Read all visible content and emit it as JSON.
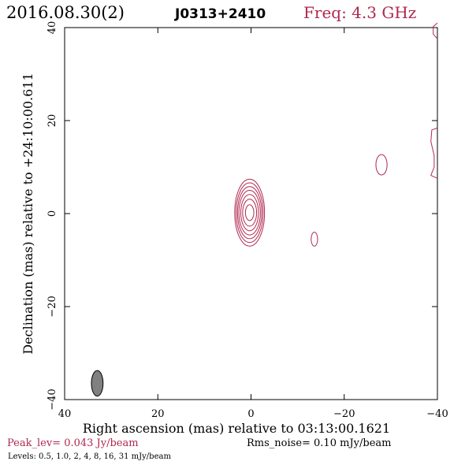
{
  "header": {
    "date": "2016.08.30(2)",
    "source": "J0313+2410",
    "freq": "Freq: 4.3 GHz"
  },
  "footer": {
    "peak": "Peak_lev=  0.043 Jy/beam",
    "rms": "Rms_noise= 0.10 mJy/beam",
    "levels": "Levels: 0.5, 1.0,   2,   4,   8,  16,  31 mJy/beam"
  },
  "colors": {
    "contour": "#b0284f",
    "axes": "#000000",
    "beam_fill": "#808080"
  },
  "chart_data": {
    "type": "contour",
    "xlabel": "Right ascension (mas) relative to 03:13:00.1621",
    "ylabel": "Declination (mas) relative to +24:10:00.611",
    "xlim": [
      40,
      -40
    ],
    "ylim": [
      -40,
      40
    ],
    "xticks": [
      40,
      20,
      0,
      -20,
      -40
    ],
    "yticks": [
      -40,
      -20,
      0,
      20,
      40
    ],
    "xtick_labels": [
      "40",
      "20",
      "0",
      "−20",
      "−40"
    ],
    "ytick_labels": [
      "−40",
      "−20",
      "0",
      "20",
      "40"
    ],
    "contours": [
      {
        "x": 0.3,
        "y": 0.2,
        "rx": 3.2,
        "ry": 7.2
      },
      {
        "x": 0.3,
        "y": 0.2,
        "rx": 2.9,
        "ry": 6.4
      },
      {
        "x": 0.3,
        "y": 0.2,
        "rx": 2.6,
        "ry": 5.6
      },
      {
        "x": 0.3,
        "y": 0.2,
        "rx": 2.3,
        "ry": 4.8
      },
      {
        "x": 0.3,
        "y": 0.2,
        "rx": 1.9,
        "ry": 3.9
      },
      {
        "x": 0.3,
        "y": 0.2,
        "rx": 1.5,
        "ry": 2.9
      },
      {
        "x": 0.3,
        "y": 0.2,
        "rx": 0.9,
        "ry": 1.7
      },
      {
        "x": -13.6,
        "y": -5.5,
        "rx": 0.7,
        "ry": 1.5
      },
      {
        "x": -28.0,
        "y": 10.5,
        "rx": 1.2,
        "ry": 2.2
      }
    ],
    "edge_features": [
      {
        "x_from": -40,
        "points": [
          [
            -40.0,
            18.4
          ],
          [
            -38.8,
            18.0
          ],
          [
            -38.6,
            15.5
          ],
          [
            -39.3,
            12.5
          ],
          [
            -39.3,
            10.0
          ],
          [
            -38.6,
            8.2
          ],
          [
            -40.0,
            7.6
          ]
        ]
      },
      {
        "x_from": -40,
        "points": [
          [
            -40.0,
            41.0
          ],
          [
            -39.1,
            40.2
          ],
          [
            -39.1,
            38.6
          ],
          [
            -40.0,
            37.6
          ]
        ]
      }
    ],
    "beam": {
      "x": 33.0,
      "y": -36.5,
      "bmaj": 5.5,
      "bmin": 2.5
    }
  }
}
